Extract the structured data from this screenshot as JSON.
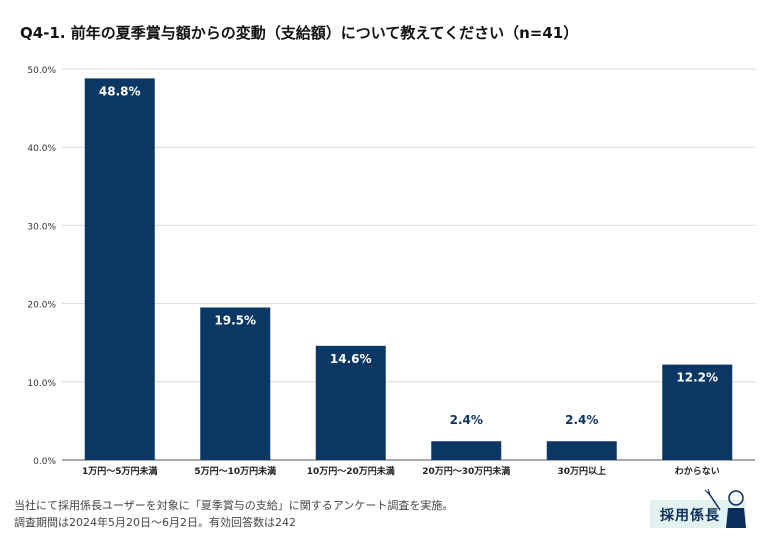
{
  "chart_data": {
    "type": "bar",
    "title": "Q4-1. 前年の夏季賞与額からの変動（支給額）について教えてください（n=41）",
    "categories": [
      "1万円～5万円未満",
      "5万円～10万円未満",
      "10万円～20万円未満",
      "20万円～30万円未満",
      "30万円以上",
      "わからない"
    ],
    "values": [
      48.8,
      19.5,
      14.6,
      2.4,
      2.4,
      12.2
    ],
    "value_labels": [
      "48.8%",
      "19.5%",
      "14.6%",
      "2.4%",
      "2.4%",
      "12.2%"
    ],
    "ylim": [
      0,
      50
    ],
    "yticks": [
      "0.0%",
      "10.0%",
      "20.0%",
      "30.0%",
      "40.0%",
      "50.0%"
    ],
    "xlabel": "",
    "ylabel": "",
    "grid": true,
    "bar_color": "#0b3764",
    "inside_label_color": "#ffffff",
    "outside_label_color": "#0b3764"
  },
  "footnote": {
    "line1": "当社にて採用係長ユーザーを対象に「夏季賞与の支給」に関するアンケート調査を実施。",
    "line2": "調査期間は2024年5月20日～6月2日。有効回答数は242"
  },
  "logo": {
    "text": "採用係長",
    "color": "#0b2f5a",
    "accent": "#3aa5a0"
  }
}
